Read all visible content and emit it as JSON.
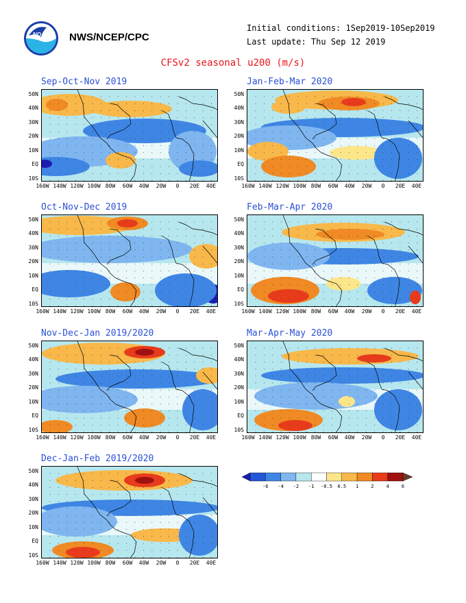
{
  "header": {
    "org": "NWS/NCEP/CPC",
    "logo": "noaa-logo",
    "initial_conditions": "Initial conditions: 1Sep2019-10Sep2019",
    "last_update": "Last update: Thu Sep 12 2019",
    "title": "CFSv2 seasonal u200 (m/s)"
  },
  "lat_labels": [
    "50N",
    "40N",
    "30N",
    "20N",
    "10N",
    "EQ",
    "10S"
  ],
  "lon_labels": [
    "160W",
    "140W",
    "120W",
    "100W",
    "80W",
    "60W",
    "40W",
    "20W",
    "0",
    "20E",
    "40E"
  ],
  "panels": [
    {
      "title": "Sep-Oct-Nov 2019"
    },
    {
      "title": "Jan-Feb-Mar 2020"
    },
    {
      "title": "Oct-Nov-Dec 2019"
    },
    {
      "title": "Feb-Mar-Apr 2020"
    },
    {
      "title": "Nov-Dec-Jan 2019/2020"
    },
    {
      "title": "Mar-Apr-May 2020"
    },
    {
      "title": "Dec-Jan-Feb 2019/2020"
    }
  ],
  "legend": {
    "labels": [
      "-6",
      "-4",
      "-2",
      "-1",
      "-0.5",
      "0.5",
      "1",
      "2",
      "4",
      "6"
    ],
    "colors": [
      "#1c1cb0",
      "#2357d6",
      "#3f86e4",
      "#7fb6f0",
      "#b7e7ee",
      "#ffffff",
      "#fde68a",
      "#f8b84a",
      "#f08a24",
      "#e83b1c",
      "#a01010",
      "#6b3b2a"
    ]
  },
  "colors": {
    "title": "#e8141a",
    "panel_title": "#2a4fd6"
  }
}
